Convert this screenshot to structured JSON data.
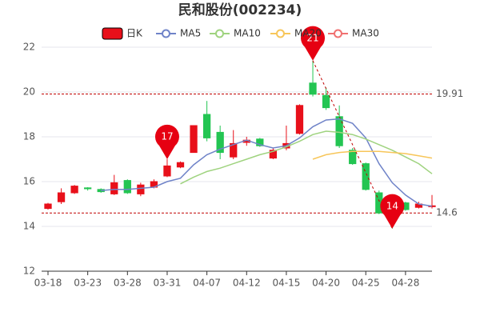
{
  "chart_data": {
    "type": "candlestick",
    "title": "民和股份(002234)",
    "categories": [
      "03-18",
      null,
      null,
      "03-23",
      null,
      null,
      "03-28",
      null,
      null,
      "03-31",
      null,
      null,
      "04-07",
      null,
      null,
      "04-12",
      null,
      null,
      "04-15",
      null,
      null,
      "04-20",
      null,
      null,
      "04-25",
      null,
      null,
      "04-28",
      null,
      null
    ],
    "ylim": [
      12,
      22
    ],
    "yticks": [
      12,
      14,
      16,
      18,
      20,
      22
    ],
    "grid": true,
    "series": [
      {
        "name": "日K",
        "type": "candlestick",
        "color_up": "#e8101a",
        "color_down": "#23c552",
        "open": [
          14.8,
          15.1,
          15.5,
          15.72,
          15.65,
          15.45,
          16.05,
          15.45,
          15.75,
          16.25,
          16.65,
          17.3,
          19.0,
          18.2,
          17.1,
          17.75,
          17.9,
          17.05,
          17.5,
          18.15,
          20.4,
          19.85,
          18.9,
          17.4,
          16.8,
          15.5,
          14.8,
          15.05,
          14.85,
          14.88
        ],
        "close": [
          15.0,
          15.5,
          15.8,
          15.68,
          15.55,
          15.95,
          15.5,
          15.85,
          16.0,
          16.7,
          16.85,
          18.5,
          17.95,
          17.3,
          17.7,
          17.85,
          17.6,
          17.4,
          17.7,
          19.4,
          19.9,
          19.3,
          17.6,
          16.8,
          15.65,
          14.6,
          14.6,
          14.75,
          15.0,
          14.92
        ],
        "high": [
          15.05,
          15.7,
          15.85,
          15.75,
          15.7,
          16.3,
          16.1,
          15.95,
          16.1,
          17.0,
          16.9,
          18.5,
          19.6,
          18.5,
          18.3,
          18.0,
          17.95,
          17.5,
          18.5,
          19.45,
          21.4,
          20.2,
          19.4,
          17.5,
          16.85,
          15.6,
          14.9,
          15.1,
          15.1,
          15.4
        ],
        "low": [
          14.75,
          15.0,
          15.45,
          15.6,
          15.5,
          15.4,
          15.45,
          15.35,
          15.7,
          16.2,
          16.6,
          17.3,
          17.8,
          17.0,
          17.0,
          17.6,
          17.55,
          17.0,
          17.4,
          18.1,
          19.8,
          19.2,
          17.5,
          16.75,
          15.6,
          14.55,
          13.9,
          14.7,
          14.8,
          14.8
        ],
        "high_labels": [
          null,
          null,
          null,
          null,
          null,
          null,
          null,
          null,
          null,
          "17",
          null,
          null,
          null,
          null,
          null,
          null,
          null,
          null,
          null,
          null,
          "21",
          null,
          null,
          null,
          null,
          null,
          null,
          null,
          null,
          null
        ],
        "low_labels": [
          null,
          null,
          null,
          null,
          null,
          null,
          null,
          null,
          null,
          null,
          null,
          null,
          null,
          null,
          null,
          null,
          null,
          null,
          null,
          null,
          null,
          null,
          null,
          null,
          null,
          null,
          "14",
          null,
          null,
          null
        ]
      },
      {
        "name": "MA5",
        "type": "line",
        "color": "#6f83c8",
        "values": [
          null,
          null,
          null,
          null,
          15.6,
          15.65,
          15.65,
          15.7,
          15.75,
          16.0,
          16.15,
          16.75,
          17.2,
          17.45,
          17.65,
          17.85,
          17.65,
          17.5,
          17.6,
          17.95,
          18.45,
          18.75,
          18.8,
          18.6,
          17.95,
          16.8,
          15.95,
          15.4,
          15.0,
          14.9
        ]
      },
      {
        "name": "MA10",
        "type": "line",
        "color": "#9fd37f",
        "values": [
          null,
          null,
          null,
          null,
          null,
          null,
          null,
          null,
          null,
          null,
          15.9,
          16.2,
          16.45,
          16.6,
          16.8,
          17.0,
          17.2,
          17.35,
          17.55,
          17.8,
          18.1,
          18.25,
          18.2,
          18.1,
          17.9,
          17.65,
          17.4,
          17.1,
          16.8,
          16.35
        ]
      },
      {
        "name": "MA20",
        "type": "line",
        "color": "#f7c65a",
        "values": [
          null,
          null,
          null,
          null,
          null,
          null,
          null,
          null,
          null,
          null,
          null,
          null,
          null,
          null,
          null,
          null,
          null,
          null,
          null,
          null,
          17.0,
          17.2,
          17.3,
          17.35,
          17.35,
          17.35,
          17.3,
          17.25,
          17.15,
          17.05
        ]
      },
      {
        "name": "MA30",
        "type": "line",
        "color": "#f07070",
        "values": [
          null,
          null,
          null,
          null,
          null,
          null,
          null,
          null,
          null,
          null,
          null,
          null,
          null,
          null,
          null,
          null,
          null,
          null,
          null,
          null,
          null,
          null,
          null,
          null,
          null,
          null,
          null,
          null,
          null,
          null
        ]
      }
    ],
    "ref_lines": [
      {
        "value": 19.91,
        "color": "#c00000"
      },
      {
        "value": 14.6,
        "color": "#c00000"
      }
    ]
  }
}
